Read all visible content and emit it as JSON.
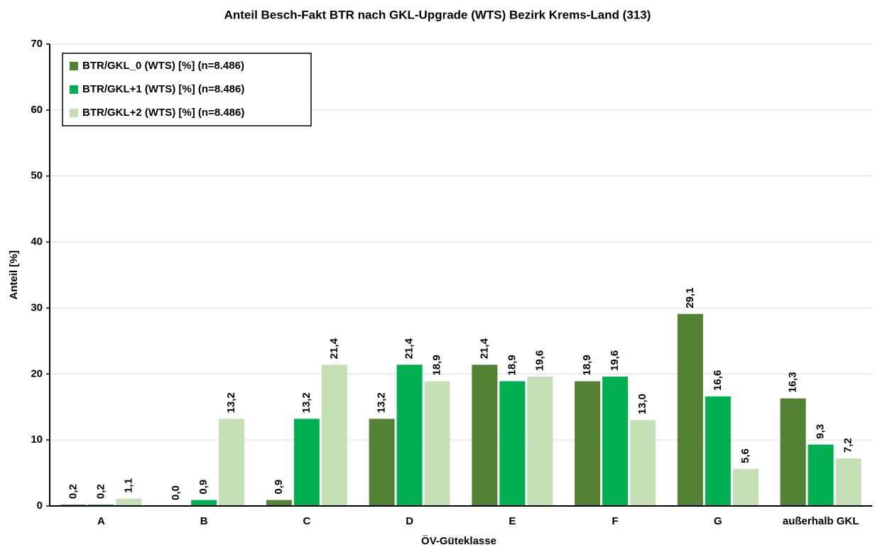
{
  "chart_data": {
    "type": "bar",
    "title": "Anteil Besch-Fakt BTR nach GKL-Upgrade (WTS) Bezirk Krems-Land (313)",
    "x_label": "ÖV-Güteklasse",
    "y_label": "Anteil [%]",
    "categories": [
      "A",
      "B",
      "C",
      "D",
      "E",
      "F",
      "G",
      "außerhalb GKL"
    ],
    "series": [
      {
        "name": "BTR/GKL_0 (WTS) [%] (n=8.486)",
        "color": "#548235",
        "values": [
          0.2,
          0.0,
          0.9,
          13.2,
          21.4,
          18.9,
          29.1,
          16.3
        ],
        "value_labels": [
          "0,2",
          "0,0",
          "0,9",
          "13,2",
          "21,4",
          "18,9",
          "29,1",
          "16,3"
        ]
      },
      {
        "name": "BTR/GKL+1 (WTS) [%] (n=8.486)",
        "color": "#00b050",
        "values": [
          0.2,
          0.9,
          13.2,
          21.4,
          18.9,
          19.6,
          16.6,
          9.3
        ],
        "value_labels": [
          "0,2",
          "0,9",
          "13,2",
          "21,4",
          "18,9",
          "19,6",
          "16,6",
          "9,3"
        ]
      },
      {
        "name": "BTR/GKL+2 (WTS) [%] (n=8.486)",
        "color": "#c5e0b4",
        "values": [
          1.1,
          13.2,
          21.4,
          18.9,
          19.6,
          13.0,
          5.6,
          7.2
        ],
        "value_labels": [
          "1,1",
          "13,2",
          "21,4",
          "18,9",
          "19,6",
          "13,0",
          "5,6",
          "7,2"
        ]
      }
    ],
    "ylim": [
      0,
      70
    ],
    "yticks": [
      0,
      10,
      20,
      30,
      40,
      50,
      60,
      70
    ],
    "grid": true,
    "legend": "upper left"
  }
}
